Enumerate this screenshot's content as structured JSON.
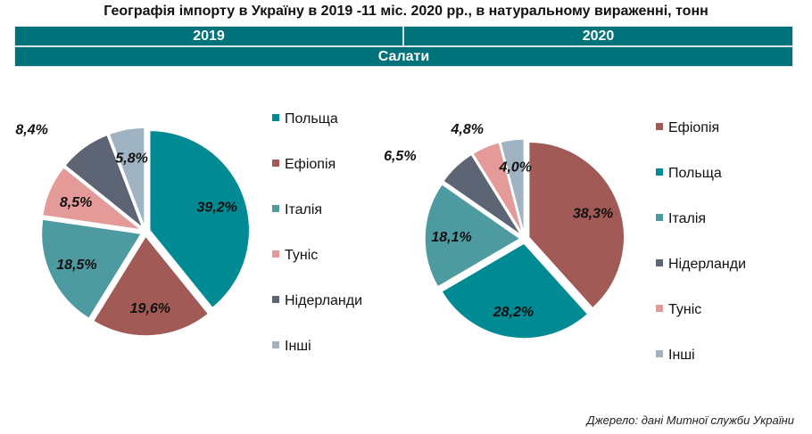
{
  "title": "Географія імпорту в Україну в 2019 -11 міс. 2020 рр., в натуральному вираженні, тонн",
  "header": {
    "year_left": "2019",
    "year_right": "2020",
    "product": "Салати"
  },
  "source": "Джерело: дані Митної служби України",
  "colors": {
    "Польща": "#008a94",
    "Ефіопія": "#a15a56",
    "Італія": "#4e9aa1",
    "Туніс": "#e49a98",
    "Нідерланди": "#5d6575",
    "Інші": "#9fb3c2"
  },
  "chart_data": [
    {
      "type": "pie",
      "title": "2019",
      "labels": [
        "Польща",
        "Ефіопія",
        "Італія",
        "Туніс",
        "Нідерланди",
        "Інші"
      ],
      "values": [
        39.2,
        19.6,
        18.5,
        8.5,
        8.4,
        5.8
      ],
      "data_labels": [
        "39,2%",
        "19,6%",
        "18,5%",
        "8,5%",
        "8,4%",
        "5,8%"
      ],
      "legend": [
        "Польща",
        "Ефіопія",
        "Італія",
        "Туніс",
        "Нідерланди",
        "Інші"
      ],
      "legend_position": "right"
    },
    {
      "type": "pie",
      "title": "2020",
      "labels": [
        "Ефіопія",
        "Польща",
        "Італія",
        "Нідерланди",
        "Туніс",
        "Інші"
      ],
      "values": [
        38.3,
        28.2,
        18.1,
        6.5,
        4.8,
        4.0
      ],
      "data_labels": [
        "38,3%",
        "28,2%",
        "18,1%",
        "6,5%",
        "4,8%",
        "4,0%"
      ],
      "legend": [
        "Ефіопія",
        "Польща",
        "Італія",
        "Нідерланди",
        "Туніс",
        "Інші"
      ],
      "legend_position": "right"
    }
  ]
}
